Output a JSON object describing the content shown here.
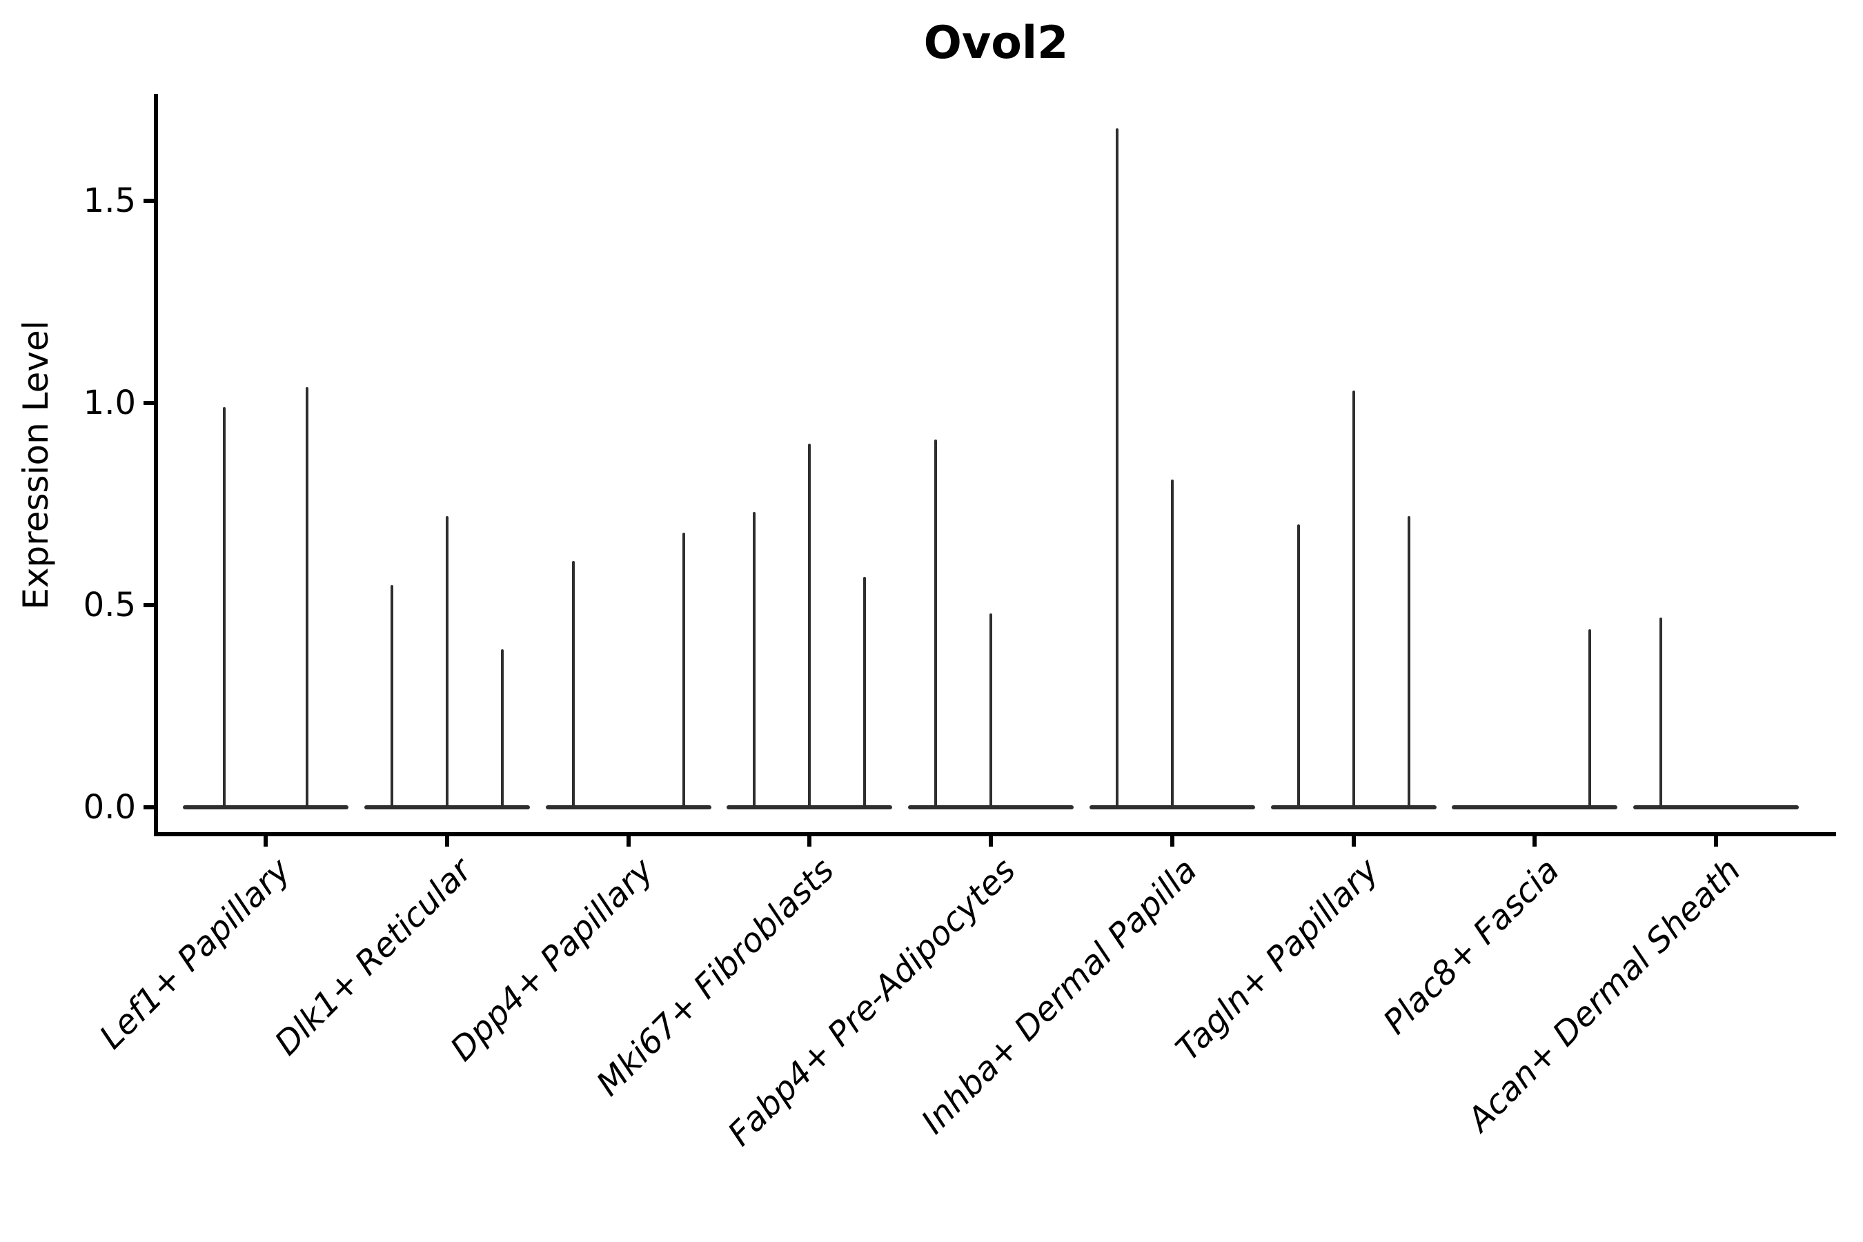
{
  "figure": {
    "title": "Ovol2",
    "ylabel": "Expression Level"
  },
  "chart_data": {
    "type": "violin",
    "title": "Ovol2",
    "xlabel": "",
    "ylabel": "Expression Level",
    "ylim": [
      0,
      1.76
    ],
    "grid": false,
    "legend": "none",
    "style": "Seurat-style VlnPlot: each cell type has a flat zero-expression baseline with very thin violin spikes (dodged sub-violins) rising to the peak expression value",
    "yticks": [
      {
        "value": 0.0,
        "label": "0.0"
      },
      {
        "value": 0.5,
        "label": "0.5"
      },
      {
        "value": 1.0,
        "label": "1.0"
      },
      {
        "value": 1.5,
        "label": "1.5"
      }
    ],
    "categories": [
      "Lef1+ Papillary",
      "Dlk1+ Reticular",
      "Dpp4+ Papillary",
      "Mki67+ Fibroblasts",
      "Fabp4+ Pre-Adipocytes",
      "Inhba+ Dermal Papilla",
      "Tagln+ Papillary",
      "Plac8+ Fascia",
      "Acan+ Dermal Sheath"
    ],
    "violins": [
      {
        "category": "Lef1+ Papillary",
        "spikes": [
          {
            "slot": 1,
            "slots_in_group": 2,
            "peak_expression": 0.99
          },
          {
            "slot": 2,
            "slots_in_group": 2,
            "peak_expression": 1.04
          }
        ]
      },
      {
        "category": "Dlk1+ Reticular",
        "spikes": [
          {
            "slot": 1,
            "slots_in_group": 3,
            "peak_expression": 0.55
          },
          {
            "slot": 2,
            "slots_in_group": 3,
            "peak_expression": 0.72
          },
          {
            "slot": 3,
            "slots_in_group": 3,
            "peak_expression": 0.39
          }
        ]
      },
      {
        "category": "Dpp4+ Papillary",
        "spikes": [
          {
            "slot": 1,
            "slots_in_group": 3,
            "peak_expression": 0.61
          },
          {
            "slot": 3,
            "slots_in_group": 3,
            "peak_expression": 0.68
          }
        ]
      },
      {
        "category": "Mki67+ Fibroblasts",
        "spikes": [
          {
            "slot": 1,
            "slots_in_group": 3,
            "peak_expression": 0.73
          },
          {
            "slot": 2,
            "slots_in_group": 3,
            "peak_expression": 0.9
          },
          {
            "slot": 3,
            "slots_in_group": 3,
            "peak_expression": 0.57
          }
        ]
      },
      {
        "category": "Fabp4+ Pre-Adipocytes",
        "spikes": [
          {
            "slot": 1,
            "slots_in_group": 3,
            "peak_expression": 0.91
          },
          {
            "slot": 2,
            "slots_in_group": 3,
            "peak_expression": 0.48
          }
        ]
      },
      {
        "category": "Inhba+ Dermal Papilla",
        "spikes": [
          {
            "slot": 1,
            "slots_in_group": 3,
            "peak_expression": 1.68
          },
          {
            "slot": 2,
            "slots_in_group": 3,
            "peak_expression": 0.81
          }
        ]
      },
      {
        "category": "Tagln+ Papillary",
        "spikes": [
          {
            "slot": 1,
            "slots_in_group": 3,
            "peak_expression": 0.7
          },
          {
            "slot": 2,
            "slots_in_group": 3,
            "peak_expression": 1.03
          },
          {
            "slot": 3,
            "slots_in_group": 3,
            "peak_expression": 0.72
          }
        ]
      },
      {
        "category": "Plac8+ Fascia",
        "spikes": [
          {
            "slot": 3,
            "slots_in_group": 3,
            "peak_expression": 0.44
          }
        ]
      },
      {
        "category": "Acan+ Dermal Sheath",
        "spikes": [
          {
            "slot": 1,
            "slots_in_group": 3,
            "peak_expression": 0.47
          }
        ]
      }
    ],
    "colors": {
      "violin_stroke": "#2e2e2e",
      "axis": "#000000",
      "background": "#ffffff"
    }
  }
}
